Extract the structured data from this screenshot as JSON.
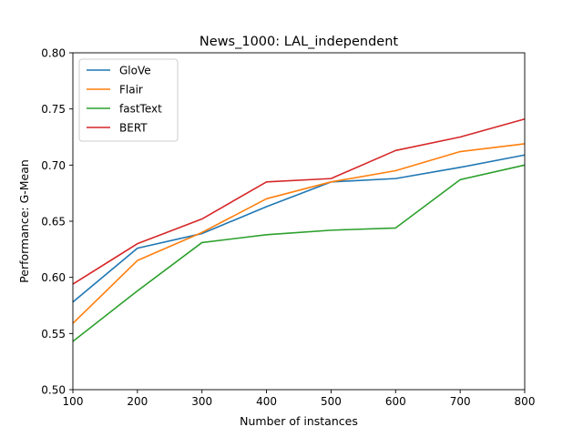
{
  "chart_data": {
    "type": "line",
    "title": "News_1000: LAL_independent",
    "xlabel": "Number of instances",
    "ylabel": "Performance: G-Mean",
    "x": [
      100,
      200,
      300,
      400,
      500,
      600,
      700,
      800
    ],
    "xlim": [
      100,
      800
    ],
    "ylim": [
      0.5,
      0.8
    ],
    "xticks": [
      "100",
      "200",
      "300",
      "400",
      "500",
      "600",
      "700",
      "800"
    ],
    "yticks": [
      "0.50",
      "0.55",
      "0.60",
      "0.65",
      "0.70",
      "0.75",
      "0.80"
    ],
    "grid": false,
    "legend_position": "top-left",
    "series": [
      {
        "name": "GloVe",
        "color": "#1f77b4",
        "values": [
          0.578,
          0.626,
          0.639,
          0.663,
          0.685,
          0.688,
          0.698,
          0.709
        ]
      },
      {
        "name": "Flair",
        "color": "#ff7f0e",
        "values": [
          0.559,
          0.615,
          0.64,
          0.67,
          0.685,
          0.695,
          0.712,
          0.719
        ]
      },
      {
        "name": "fastText",
        "color": "#2ca02c",
        "values": [
          0.543,
          0.588,
          0.631,
          0.638,
          0.642,
          0.644,
          0.687,
          0.7
        ]
      },
      {
        "name": "BERT",
        "color": "#d62728",
        "values": [
          0.594,
          0.63,
          0.652,
          0.685,
          0.688,
          0.713,
          0.725,
          0.741
        ]
      }
    ]
  }
}
